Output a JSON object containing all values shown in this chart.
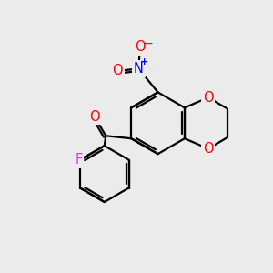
{
  "bg_color": "#ebebeb",
  "bond_color": "#000000",
  "bond_width": 1.6,
  "atom_colors": {
    "O": "#ff0000",
    "N": "#0000ff",
    "F": "#cc44cc",
    "C": "#000000"
  },
  "font_size_atom": 10.5
}
